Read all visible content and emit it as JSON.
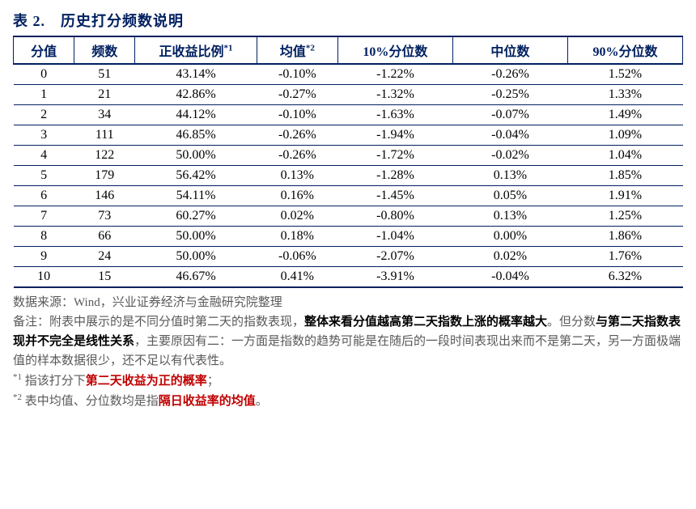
{
  "title": "表 2.　历史打分频数说明",
  "columns": [
    "分值",
    "频数",
    "正收益比例*1",
    "均值*2",
    "10%分位数",
    "中位数",
    "90%分位数"
  ],
  "rows": [
    [
      "0",
      "51",
      "43.14%",
      "-0.10%",
      "-1.22%",
      "-0.26%",
      "1.52%"
    ],
    [
      "1",
      "21",
      "42.86%",
      "-0.27%",
      "-1.32%",
      "-0.25%",
      "1.33%"
    ],
    [
      "2",
      "34",
      "44.12%",
      "-0.10%",
      "-1.63%",
      "-0.07%",
      "1.49%"
    ],
    [
      "3",
      "111",
      "46.85%",
      "-0.26%",
      "-1.94%",
      "-0.04%",
      "1.09%"
    ],
    [
      "4",
      "122",
      "50.00%",
      "-0.26%",
      "-1.72%",
      "-0.02%",
      "1.04%"
    ],
    [
      "5",
      "179",
      "56.42%",
      "0.13%",
      "-1.28%",
      "0.13%",
      "1.85%"
    ],
    [
      "6",
      "146",
      "54.11%",
      "0.16%",
      "-1.45%",
      "0.05%",
      "1.91%"
    ],
    [
      "7",
      "73",
      "60.27%",
      "0.02%",
      "-0.80%",
      "0.13%",
      "1.25%"
    ],
    [
      "8",
      "66",
      "50.00%",
      "0.18%",
      "-1.04%",
      "0.00%",
      "1.86%"
    ],
    [
      "9",
      "24",
      "50.00%",
      "-0.06%",
      "-2.07%",
      "0.02%",
      "1.76%"
    ],
    [
      "10",
      "15",
      "46.67%",
      "0.41%",
      "-3.91%",
      "-0.04%",
      "6.32%"
    ]
  ],
  "source_label": "数据来源：Wind，兴业证券经济与金融研究院整理",
  "note_prefix": "备注：附表中展示的是不同分值时第二天的指数表现，",
  "note_bold1": "整体来看分值越高第二天指数上涨的概率越大",
  "note_mid1": "。但分数",
  "note_bold2": "与第二天指数表现并不完全是线性关系",
  "note_after": "，主要原因有二：一方面是指数的趋势可能是在随后的一段时间表现出来而不是第二天，另一方面极端值的样本数据很少，还不足以有代表性。",
  "fn1_sup": "*1",
  "fn1_a": " 指该打分下",
  "fn1_red": "第二天收益为正的概率",
  "fn1_b": "；",
  "fn2_sup": "*2",
  "fn2_a": " 表中均值、分位数均是指",
  "fn2_red": "隔日收益率的均值",
  "fn2_b": "。",
  "colors": {
    "navy": "#002060",
    "grey": "#595959",
    "red": "#c00000",
    "bg": "#ffffff"
  },
  "font_sizes": {
    "title": 18,
    "table": 16,
    "notes": 15,
    "sup": 11
  }
}
